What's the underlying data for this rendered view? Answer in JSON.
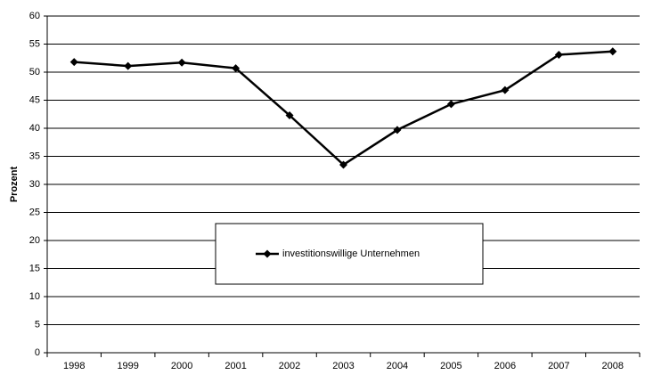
{
  "chart_data": {
    "type": "line",
    "y_label": "Prozent",
    "categories": [
      "1998",
      "1999",
      "2000",
      "2001",
      "2002",
      "2003",
      "2004",
      "2005",
      "2006",
      "2007",
      "2008"
    ],
    "series": [
      {
        "name": "investitionswillige Unternehmen",
        "color": "#000000",
        "values": [
          51.8,
          51.1,
          51.7,
          50.7,
          42.3,
          33.5,
          39.7,
          44.3,
          46.8,
          53.1,
          53.7
        ]
      }
    ],
    "ylim": [
      0,
      60
    ],
    "yticks": [
      0,
      5,
      10,
      15,
      20,
      25,
      30,
      35,
      40,
      45,
      50,
      55,
      60
    ],
    "grid": true,
    "legend": "center"
  }
}
